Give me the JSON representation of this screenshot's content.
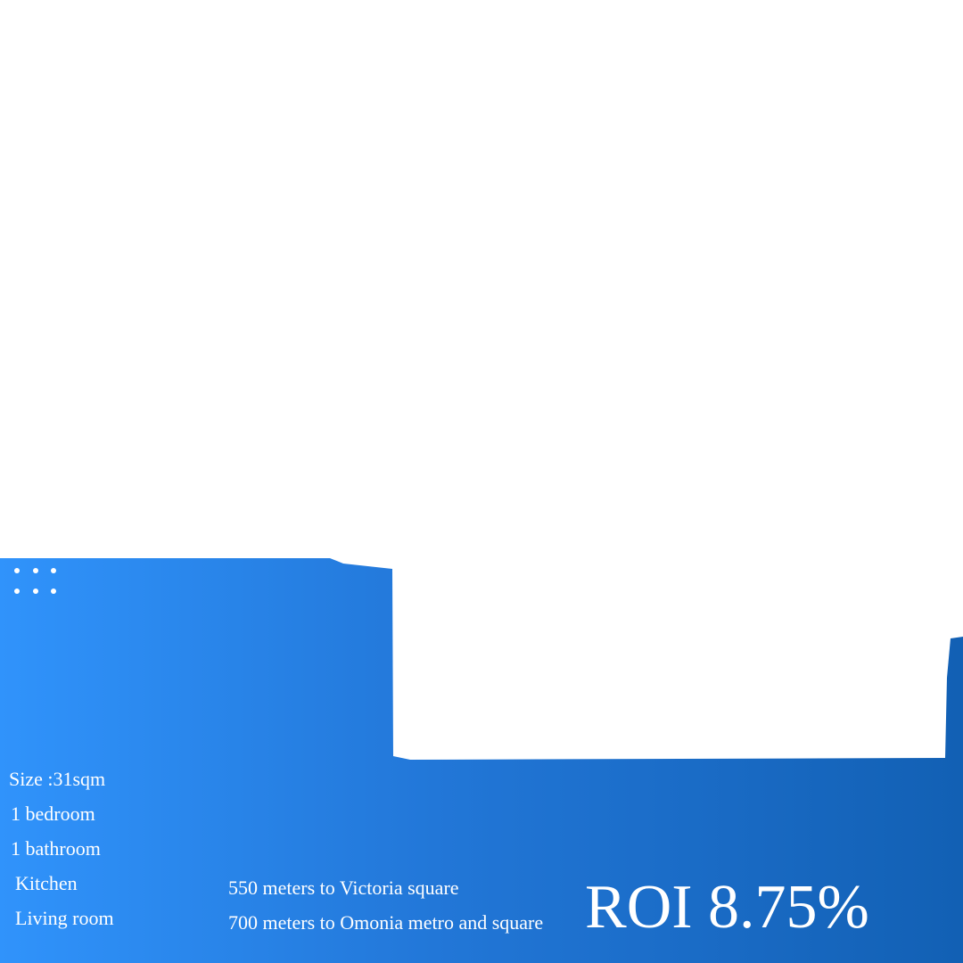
{
  "colors": {
    "band_start": "#3093fb",
    "band_mid": "#2277d8",
    "band_end": "#1260b4",
    "text": "#ffffff",
    "background": "#ffffff"
  },
  "decoration": {
    "icon": "dots-grid-icon",
    "dot_count": 6
  },
  "features": [
    "Size :31sqm",
    "1 bedroom",
    "1 bathroom",
    "Kitchen",
    "Living room"
  ],
  "distances": [
    "550 meters to Victoria square",
    "700 meters to Omonia metro and square"
  ],
  "roi": "ROI 8.75%"
}
